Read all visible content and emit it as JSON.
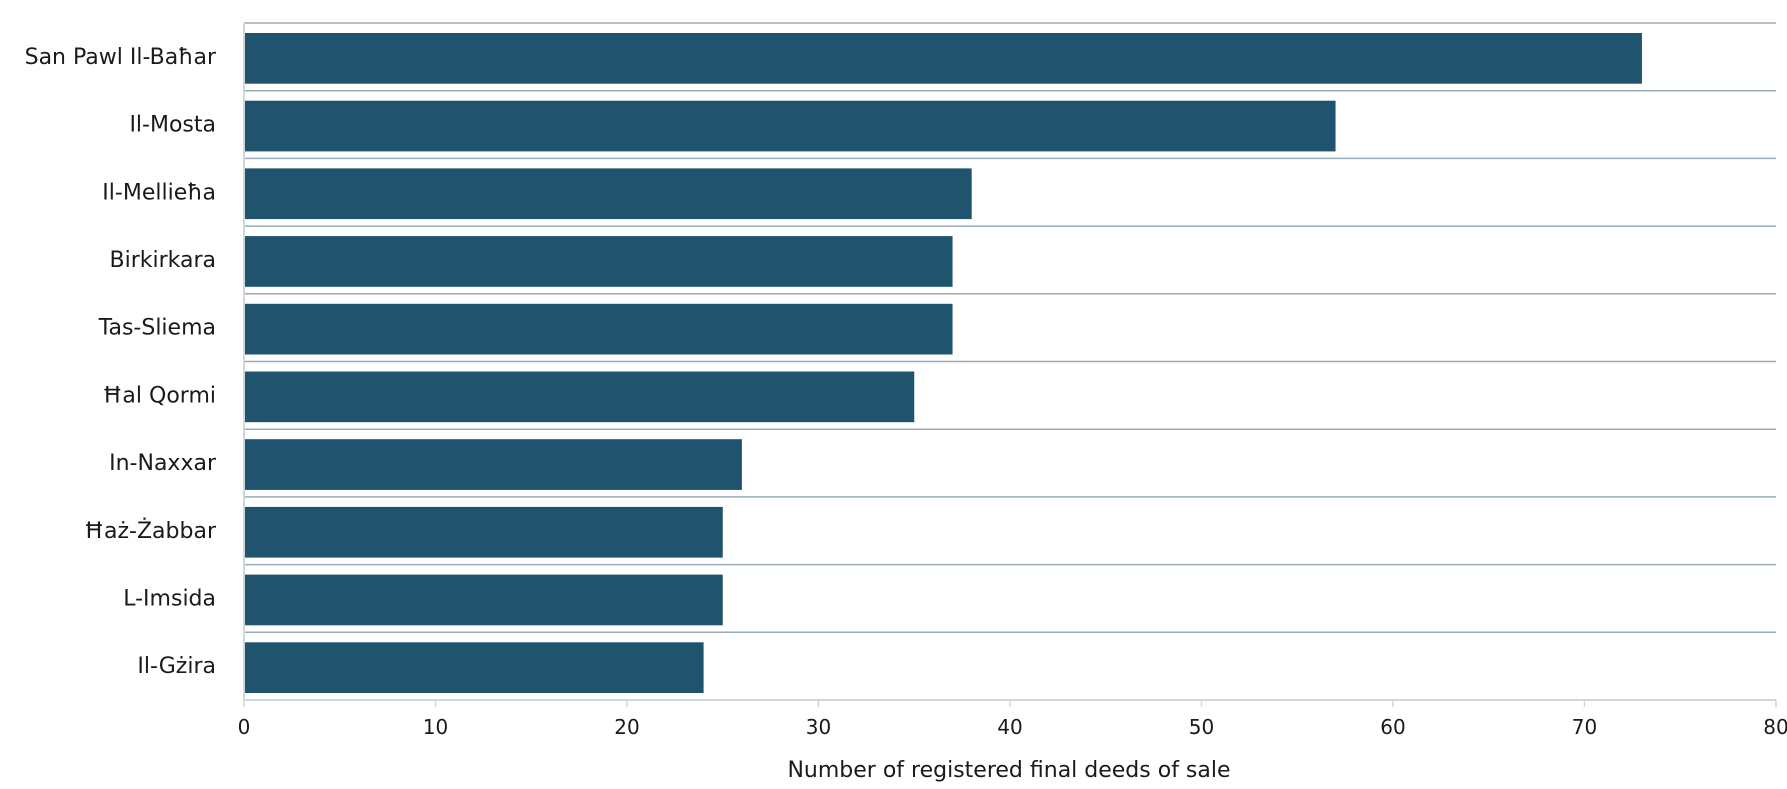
{
  "chart_data": {
    "type": "bar",
    "orientation": "horizontal",
    "categories": [
      "San Pawl Il-Baħar",
      "Il-Mosta",
      "Il-Mellieħa",
      "Birkirkara",
      "Tas-Sliema",
      "Ħal Qormi",
      "In-Naxxar",
      "Ħaż-Żabbar",
      "L-Imsida",
      "Il-Gżira"
    ],
    "values": [
      73,
      57,
      38,
      37,
      37,
      35,
      26,
      25,
      25,
      24
    ],
    "xlabel": "Number of registered final deeds of sale",
    "ylabel": "",
    "xlim": [
      0,
      80
    ],
    "x_ticks": [
      "0",
      "10",
      "20",
      "30",
      "40",
      "50",
      "60",
      "70",
      "80"
    ],
    "grid": "horizontal separators between categories",
    "colors": {
      "bar": "#1f536e",
      "separator": "#9aabb8",
      "axis": "#cfd6dc",
      "text": "#1a1a1a"
    }
  }
}
